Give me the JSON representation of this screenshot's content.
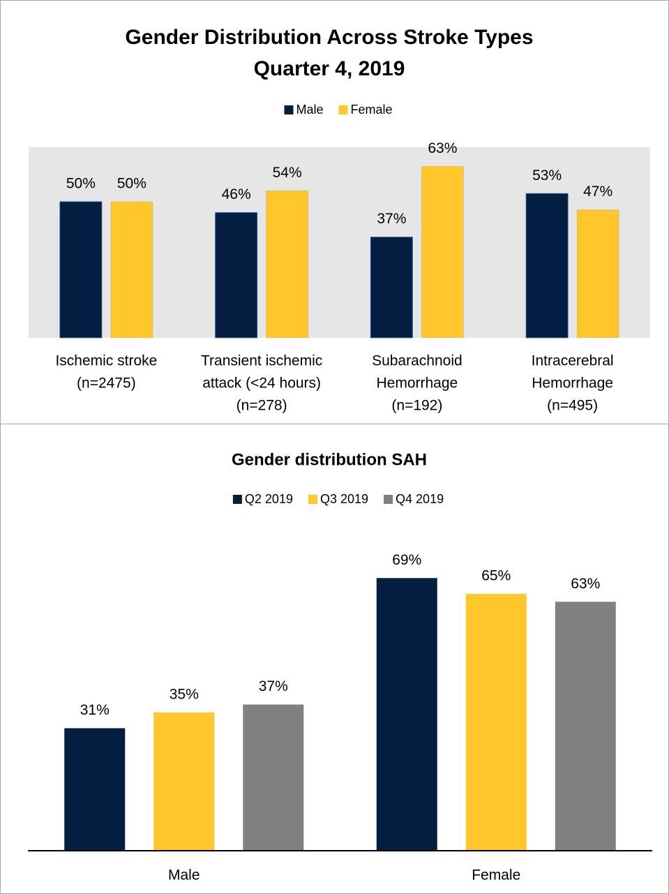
{
  "chart_data": [
    {
      "type": "bar",
      "title": "Gender Distribution Across Stroke Types",
      "subtitle": "Quarter 4, 2019",
      "categories": [
        [
          "Ischemic stroke",
          "(n=2475)"
        ],
        [
          "Transient ischemic",
          "attack (<24 hours)",
          "(n=278)"
        ],
        [
          "Subarachnoid",
          "Hemorrhage",
          "(n=192)"
        ],
        [
          "Intracerebral",
          "Hemorrhage",
          "(n=495)"
        ]
      ],
      "series": [
        {
          "name": "Male",
          "color": "#041e42",
          "values": [
            50,
            46,
            37,
            53
          ],
          "value_labels": [
            "50%",
            "46%",
            "37%",
            "53%"
          ]
        },
        {
          "name": "Female",
          "color": "#ffc72c",
          "values": [
            50,
            54,
            63,
            47
          ],
          "value_labels": [
            "50%",
            "54%",
            "63%",
            "47%"
          ]
        }
      ],
      "ylim": [
        0,
        70
      ],
      "background": "#e6e6e6",
      "legend": "top"
    },
    {
      "type": "bar",
      "title": "Gender distribution SAH",
      "categories": [
        "Male",
        "Female"
      ],
      "series": [
        {
          "name": "Q2 2019",
          "color": "#041e42",
          "values": [
            31,
            69
          ],
          "value_labels": [
            "31%",
            "69%"
          ]
        },
        {
          "name": "Q3 2019",
          "color": "#ffc72c",
          "values": [
            35,
            65
          ],
          "value_labels": [
            "35%",
            "65%"
          ]
        },
        {
          "name": "Q4 2019",
          "color": "#808080",
          "values": [
            37,
            63
          ],
          "value_labels": [
            "37%",
            "63%"
          ]
        }
      ],
      "ylim": [
        0,
        80
      ],
      "legend": "top"
    }
  ]
}
